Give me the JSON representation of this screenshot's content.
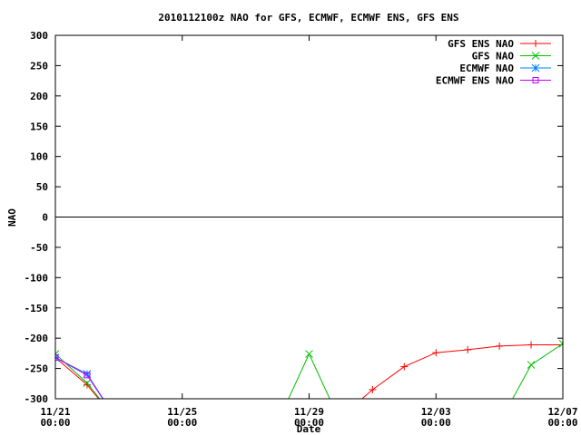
{
  "chart_data": {
    "type": "line",
    "title": "2010112100z NAO for GFS, ECMWF, ECMWF ENS, GFS ENS",
    "xlabel": "Date",
    "ylabel": "NAO",
    "ylim": [
      -300,
      300
    ],
    "xlim": [
      "2010-11-21T00:00",
      "2010-12-07T00:00"
    ],
    "yticks": [
      300,
      250,
      200,
      150,
      100,
      50,
      0,
      -50,
      -100,
      -150,
      -200,
      -250,
      -300
    ],
    "xticks": [
      {
        "date": "2010-11-21T00:00",
        "line1": "11/21",
        "line2": "00:00"
      },
      {
        "date": "2010-11-25T00:00",
        "line1": "11/25",
        "line2": "00:00"
      },
      {
        "date": "2010-11-29T00:00",
        "line1": "11/29",
        "line2": "00:00"
      },
      {
        "date": "2010-12-03T00:00",
        "line1": "12/03",
        "line2": "00:00"
      },
      {
        "date": "2010-12-07T00:00",
        "line1": "12/07",
        "line2": "00:00"
      }
    ],
    "zero_line": true,
    "grid": false,
    "legend_position": "top-right",
    "series": [
      {
        "name": "GFS ENS NAO",
        "color": "#ff0000",
        "marker": "plus",
        "points": [
          {
            "x": "2010-11-21T00:00",
            "y": -232
          },
          {
            "x": "2010-11-22T00:00",
            "y": -277
          },
          {
            "x": "2010-11-23T00:00",
            "y": -340
          },
          {
            "x": "2010-11-30T00:00",
            "y": -330
          },
          {
            "x": "2010-12-01T00:00",
            "y": -285
          },
          {
            "x": "2010-12-02T00:00",
            "y": -247
          },
          {
            "x": "2010-12-03T00:00",
            "y": -224
          },
          {
            "x": "2010-12-04T00:00",
            "y": -219
          },
          {
            "x": "2010-12-05T00:00",
            "y": -213
          },
          {
            "x": "2010-12-06T00:00",
            "y": -211
          },
          {
            "x": "2010-12-07T00:00",
            "y": -211
          }
        ]
      },
      {
        "name": "GFS NAO",
        "color": "#00c000",
        "marker": "x",
        "points": [
          {
            "x": "2010-11-21T00:00",
            "y": -226
          },
          {
            "x": "2010-11-22T00:00",
            "y": -274
          },
          {
            "x": "2010-11-23T00:00",
            "y": -340
          },
          {
            "x": "2010-11-28T00:00",
            "y": -340
          },
          {
            "x": "2010-11-29T00:00",
            "y": -226
          },
          {
            "x": "2010-11-30T00:00",
            "y": -340
          },
          {
            "x": "2010-12-05T00:00",
            "y": -340
          },
          {
            "x": "2010-12-06T00:00",
            "y": -244
          },
          {
            "x": "2010-12-07T00:00",
            "y": -209
          }
        ]
      },
      {
        "name": "ECMWF NAO",
        "color": "#0080ff",
        "marker": "star",
        "points": [
          {
            "x": "2010-11-21T00:00",
            "y": -232
          },
          {
            "x": "2010-11-22T00:00",
            "y": -259
          },
          {
            "x": "2010-11-23T00:00",
            "y": -340
          }
        ]
      },
      {
        "name": "ECMWF ENS NAO",
        "color": "#c000ff",
        "marker": "square",
        "points": [
          {
            "x": "2010-11-21T00:00",
            "y": -232
          },
          {
            "x": "2010-11-22T00:00",
            "y": -261
          },
          {
            "x": "2010-11-23T00:00",
            "y": -340
          }
        ]
      }
    ]
  }
}
